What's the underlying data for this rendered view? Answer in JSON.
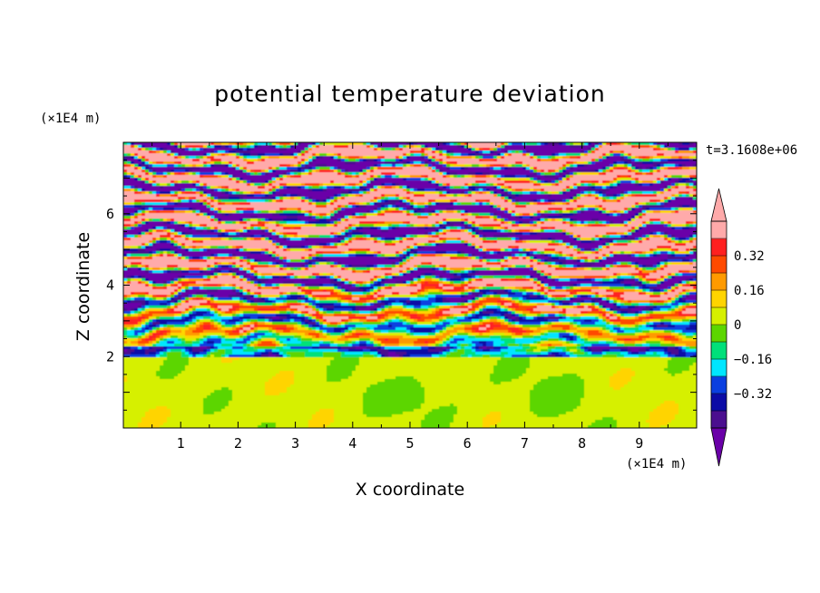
{
  "chart_data": {
    "type": "heatmap",
    "title": "potential temperature deviation",
    "xlabel": "X coordinate",
    "ylabel": "Z coordinate",
    "x_unit": "(×1E4 m)",
    "y_unit": "(×1E4 m)",
    "time_label": "t=3.1608e+06",
    "xlim": [
      0,
      10
    ],
    "ylim": [
      0,
      8
    ],
    "xticks": [
      1,
      2,
      3,
      4,
      5,
      6,
      7,
      8,
      9
    ],
    "yticks": [
      2,
      4,
      6
    ],
    "colorbar": {
      "levels": [
        -0.48,
        -0.4,
        -0.32,
        -0.24,
        -0.16,
        -0.08,
        0,
        0.08,
        0.16,
        0.24,
        0.32,
        0.4,
        0.48
      ],
      "tick_labels": [
        "0.32",
        "0.16",
        "0",
        "−0.16",
        "−0.32"
      ],
      "tick_values": [
        0.32,
        0.16,
        0,
        -0.16,
        -0.32
      ],
      "colors_bottom_to_top": [
        "#4b0f8f",
        "#0b0ba6",
        "#0a3fe0",
        "#00e6ff",
        "#00e07a",
        "#5cd600",
        "#d6f000",
        "#ffd400",
        "#ff9a00",
        "#ff4a00",
        "#ff2020",
        "#ffaaaa"
      ],
      "under_color": "#6a00a8",
      "over_color": "#ffaaaa"
    },
    "regions": [
      {
        "z_range": [
          0,
          2
        ],
        "description_value": 0.04
      },
      {
        "z_range": [
          2,
          8
        ],
        "description_value": "layered oscillations"
      }
    ]
  }
}
